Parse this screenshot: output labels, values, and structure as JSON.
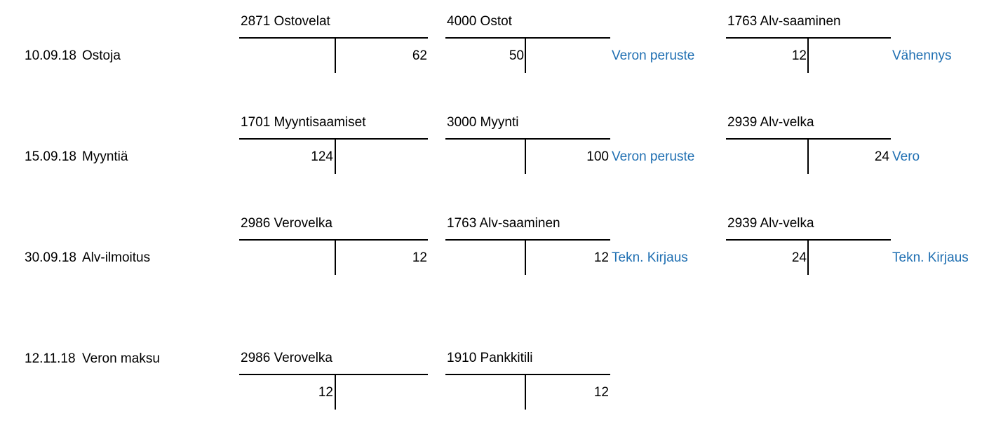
{
  "rows": [
    {
      "date": "10.09.18",
      "desc": "Ostoja",
      "accounts": [
        {
          "title": "2871 Ostovelat",
          "debit": "",
          "credit": "62",
          "note": ""
        },
        {
          "title": "4000 Ostot",
          "debit": "50",
          "credit": "",
          "note": "Veron peruste"
        },
        {
          "title": "1763 Alv-saaminen",
          "debit": "12",
          "credit": "",
          "note": "Vähennys"
        }
      ]
    },
    {
      "date": "15.09.18",
      "desc": "Myyntiä",
      "accounts": [
        {
          "title": "1701 Myyntisaamiset",
          "debit": "124",
          "credit": "",
          "note": ""
        },
        {
          "title": "3000 Myynti",
          "debit": "",
          "credit": "100",
          "note": "Veron peruste"
        },
        {
          "title": "2939 Alv-velka",
          "debit": "",
          "credit": "24",
          "note": "Vero"
        }
      ]
    },
    {
      "date": "30.09.18",
      "desc": "Alv-ilmoitus",
      "accounts": [
        {
          "title": "2986 Verovelka",
          "debit": "",
          "credit": "12",
          "note": ""
        },
        {
          "title": "1763 Alv-saaminen",
          "debit": "",
          "credit": "12",
          "note": "Tekn. Kirjaus"
        },
        {
          "title": "2939 Alv-velka",
          "debit": "24",
          "credit": "",
          "note": "Tekn. Kirjaus"
        }
      ]
    },
    {
      "date": "12.11.18",
      "desc": "Veron maksu",
      "accounts": [
        {
          "title": "2986 Verovelka",
          "debit": "12",
          "credit": "",
          "note": ""
        },
        {
          "title": "1910 Pankkitili",
          "debit": "",
          "credit": "12",
          "note": ""
        }
      ]
    }
  ]
}
